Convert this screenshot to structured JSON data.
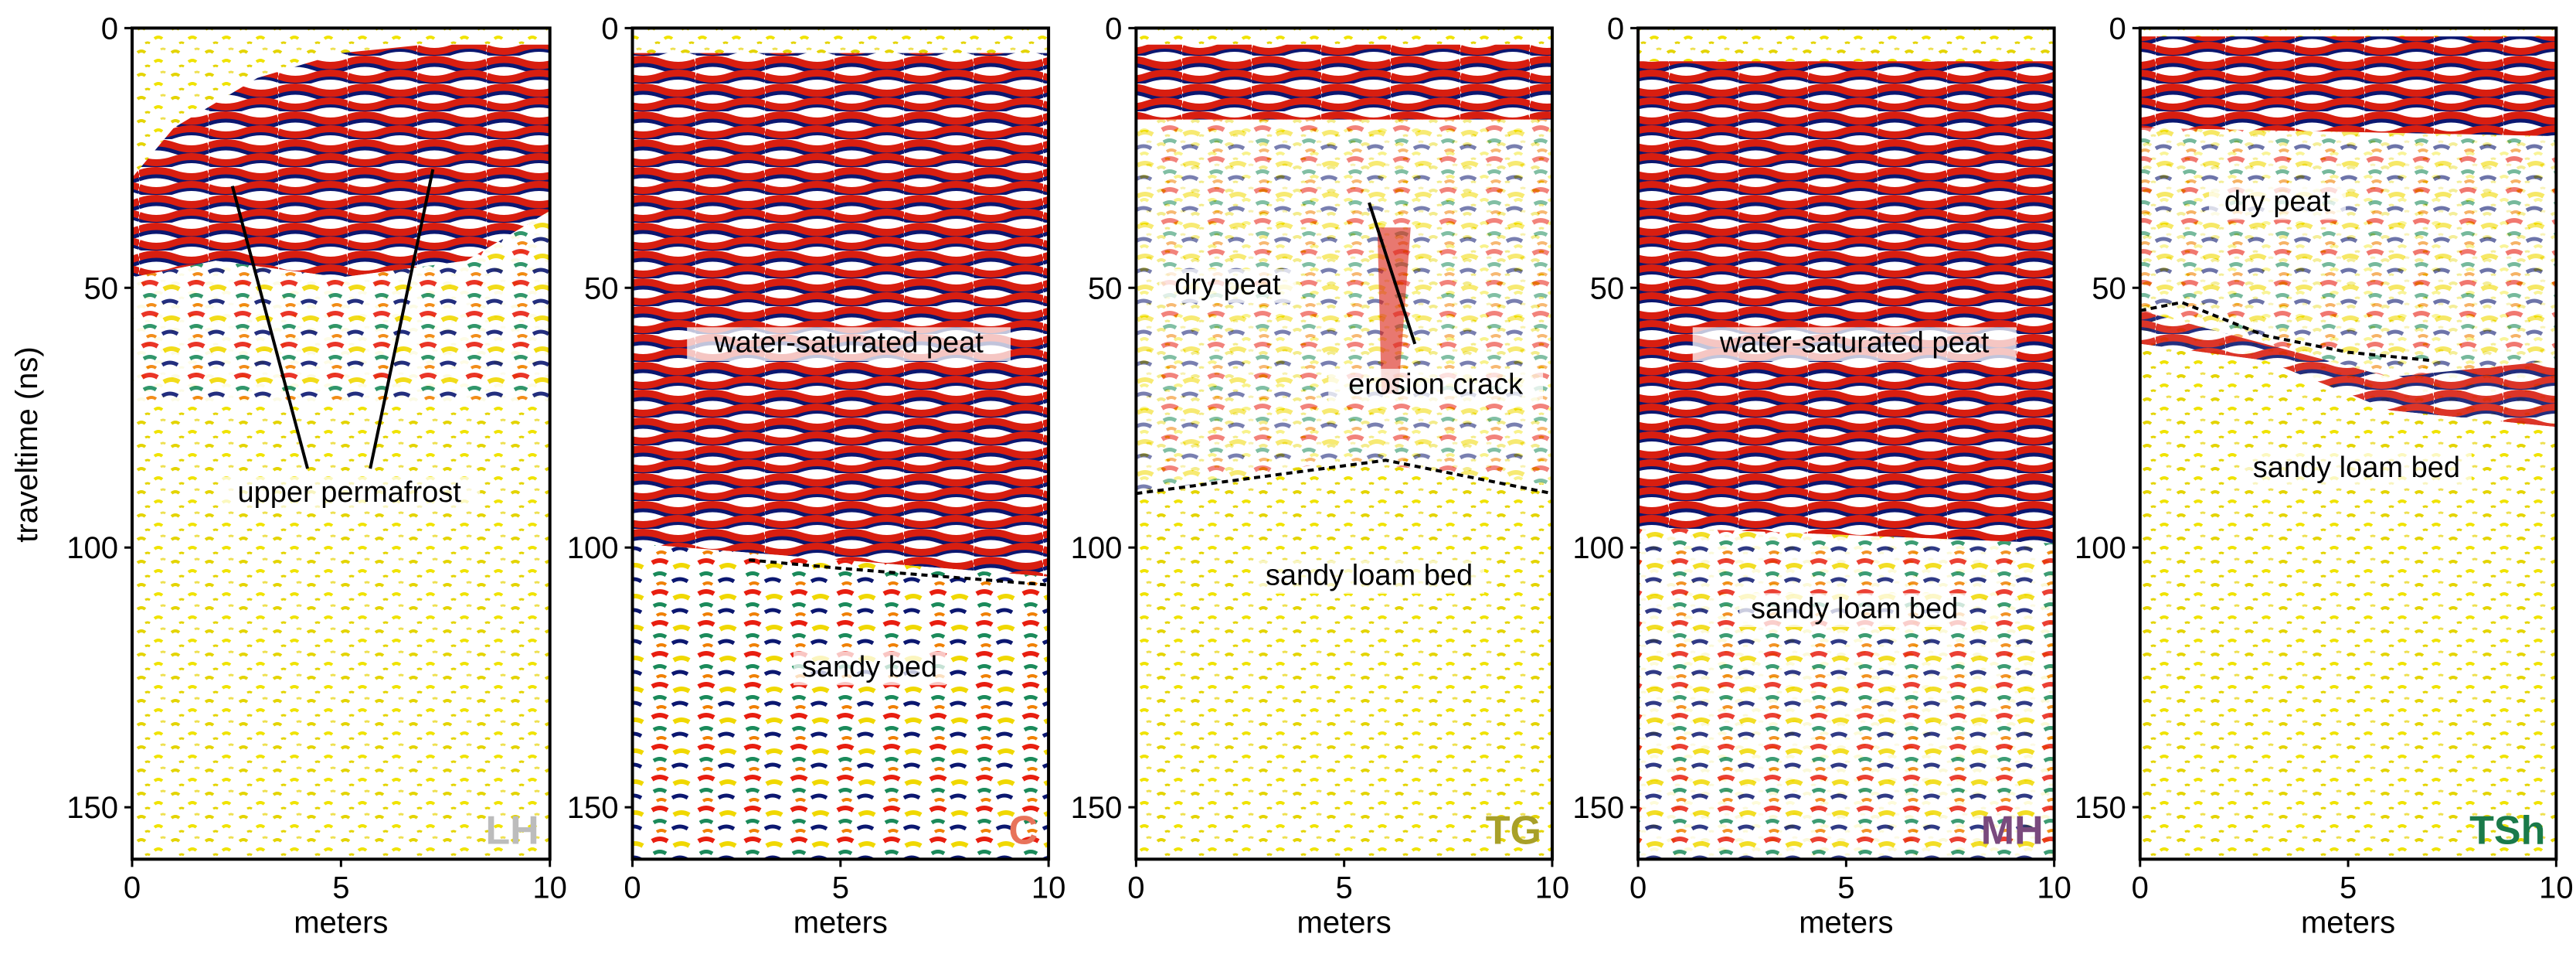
{
  "figure": {
    "ylabel": "traveltime (ns)",
    "y_ticks": [
      "0",
      "50",
      "100",
      "150"
    ],
    "x_ticks": [
      "0",
      "5",
      "10"
    ],
    "xlabel": "meters"
  },
  "panels": [
    {
      "code": "LH",
      "code_color": "#bcbcbc",
      "x_range": [
        0,
        10
      ],
      "y_range": [
        0,
        160
      ],
      "annotations": [
        "upper permafrost"
      ]
    },
    {
      "code": "C",
      "code_color": "#e8735a",
      "x_range": [
        0,
        10
      ],
      "y_range": [
        0,
        160
      ],
      "annotations": [
        "water-saturated peat",
        "sandy bed"
      ]
    },
    {
      "code": "TG",
      "code_color": "#a8a028",
      "x_range": [
        0,
        10
      ],
      "y_range": [
        0,
        160
      ],
      "annotations": [
        "dry peat",
        "erosion crack",
        "sandy loam bed"
      ]
    },
    {
      "code": "MH",
      "code_color": "#7a4a7e",
      "x_range": [
        0,
        10
      ],
      "y_range": [
        0,
        160
      ],
      "annotations": [
        "water-saturated peat",
        "sandy loam bed"
      ]
    },
    {
      "code": "TSh",
      "code_color": "#1a7a4a",
      "x_range": [
        0,
        10
      ],
      "y_range": [
        0,
        160
      ],
      "annotations": [
        "dry peat",
        "sandy loam bed"
      ]
    }
  ]
}
